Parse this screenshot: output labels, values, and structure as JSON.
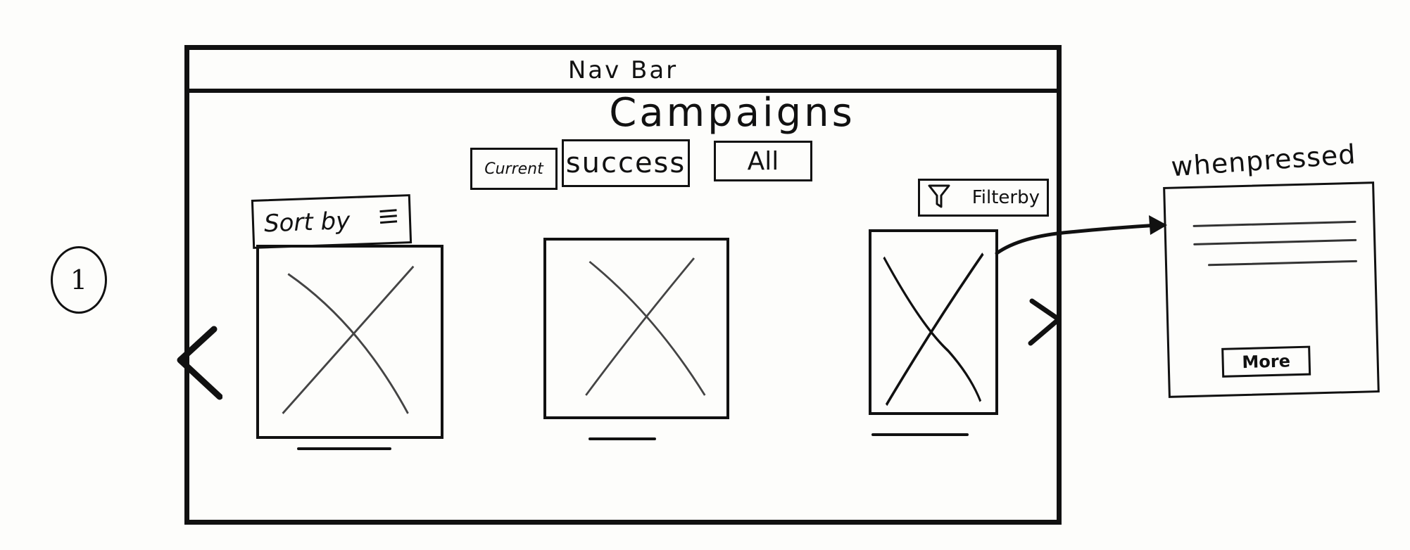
{
  "step_marker": "1",
  "nav": {
    "label": "Nav Bar"
  },
  "page": {
    "title": "Campaigns"
  },
  "tabs": [
    {
      "label": "Current"
    },
    {
      "label": "success"
    },
    {
      "label": "All"
    }
  ],
  "sort": {
    "label": "Sort by",
    "icon": "menu-icon"
  },
  "filter": {
    "label": "Filterby",
    "icon": "filter-icon"
  },
  "carousel": {
    "prev_icon": "chevron-left-icon",
    "next_icon": "chevron-right-icon",
    "cards": [
      {
        "image": "image-placeholder-icon"
      },
      {
        "image": "image-placeholder-icon"
      },
      {
        "image": "image-placeholder-icon"
      }
    ]
  },
  "popup": {
    "label": "whenpressed",
    "more_label": "More"
  }
}
